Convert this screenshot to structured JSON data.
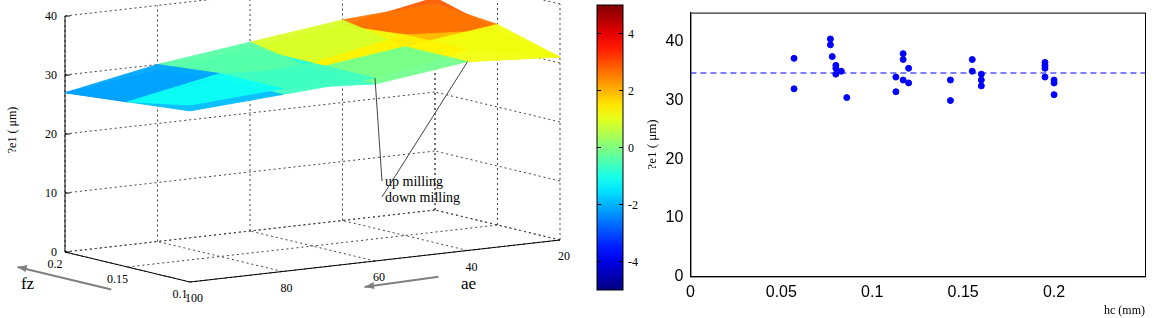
{
  "chart_data": [
    {
      "type": "surface",
      "x_label": "fz",
      "y_label": "ae",
      "z_label": "?e1 ( μm)",
      "x": [
        0.1,
        0.15,
        0.2
      ],
      "y": [
        100,
        80,
        60,
        40,
        20
      ],
      "xlim": [
        0.1,
        0.2
      ],
      "xticks": [
        0.1,
        0.15,
        0.2
      ],
      "ylim": [
        20,
        100
      ],
      "yticks": [
        20,
        40,
        60,
        80,
        100
      ],
      "zlim": [
        0,
        40
      ],
      "zticks": [
        0,
        10,
        20,
        30,
        40
      ],
      "series": [
        {
          "name": "up milling",
          "z": [
            [
              29,
              30,
              31,
              34,
              31
            ],
            [
              28,
              30,
              31,
              34,
              33
            ],
            [
              27,
              29,
              31,
              33,
              36
            ]
          ]
        },
        {
          "name": "down milling",
          "z": [
            [
              30,
              31,
              30,
              32,
              31
            ],
            [
              28,
              31,
              30,
              32,
              34
            ],
            [
              27,
              30,
              32,
              34,
              35
            ]
          ]
        }
      ],
      "colorbar_range": [
        -5,
        5
      ],
      "colorbar_ticks": [
        -4,
        -2,
        0,
        2,
        4
      ],
      "grid": true
    },
    {
      "type": "scatter",
      "x_label": "hc (mm)",
      "y_label": "?e1 ( μm)",
      "x": [
        0.057,
        0.057,
        0.077,
        0.077,
        0.078,
        0.08,
        0.08,
        0.08,
        0.083,
        0.086,
        0.113,
        0.113,
        0.117,
        0.117,
        0.117,
        0.12,
        0.12,
        0.143,
        0.143,
        0.155,
        0.155,
        0.16,
        0.16,
        0.16,
        0.195,
        0.195,
        0.195,
        0.195,
        0.2,
        0.2,
        0.2
      ],
      "values": [
        37.2,
        32,
        40.5,
        39.5,
        37.5,
        36,
        35.5,
        34.5,
        35,
        30.5,
        31.5,
        34,
        38,
        37,
        33.5,
        35.5,
        33,
        33.5,
        30,
        37,
        35,
        34.5,
        33.5,
        32.5,
        36.5,
        36,
        35.5,
        34,
        33.5,
        31,
        33
      ],
      "color": "#0000ff",
      "marker": "circle",
      "xlim": [
        0,
        0.25
      ],
      "xticks": [
        0,
        0.05,
        0.1,
        0.15,
        0.2
      ],
      "ylim": [
        0,
        45
      ],
      "yticks": [
        0,
        10,
        20,
        30,
        40
      ],
      "mean_line": 34.7,
      "line_style": "dashed",
      "grid": false
    }
  ]
}
